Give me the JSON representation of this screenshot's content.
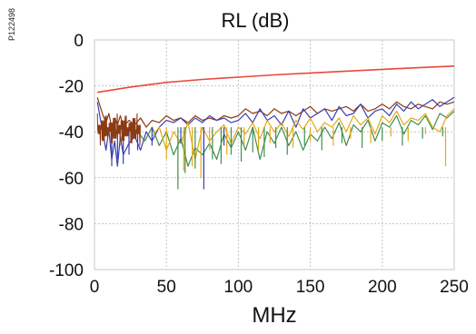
{
  "figure_id": "P122498",
  "chart_data": {
    "type": "line",
    "title": "RL (dB)",
    "xlabel": "MHz",
    "ylabel": "",
    "xlim": [
      0,
      250
    ],
    "ylim": [
      -100,
      0
    ],
    "x_ticks": [
      "0",
      "50",
      "100",
      "150",
      "200",
      "250"
    ],
    "y_ticks": [
      "0",
      "-20",
      "-40",
      "-60",
      "-80",
      "-100"
    ],
    "grid": true,
    "legend": "none",
    "series": [
      {
        "color": "#e8483c",
        "x": [
          2,
          25,
          50,
          75,
          100,
          125,
          150,
          175,
          200,
          225,
          250
        ],
        "y": [
          -22.8,
          -20.5,
          -18.5,
          -17.2,
          -16.2,
          -15.2,
          -14.4,
          -13.6,
          -12.8,
          -12.1,
          -11.4
        ]
      },
      {
        "color": "#8b3a12",
        "x": [
          2,
          4,
          6,
          8,
          10,
          12,
          14,
          16,
          18,
          20,
          24,
          28,
          32,
          36,
          40,
          45,
          50,
          55,
          60,
          65,
          70,
          75,
          80,
          85,
          90,
          95,
          100,
          105,
          110,
          115,
          120,
          125,
          130,
          135,
          140,
          145,
          150,
          155,
          160,
          165,
          170,
          175,
          180,
          185,
          190,
          195,
          200,
          205,
          210,
          215,
          220,
          225,
          230,
          235,
          240,
          245,
          250
        ],
        "y": [
          -25,
          -29,
          -33,
          -36,
          -32,
          -38,
          -34,
          -37,
          -33,
          -38,
          -35,
          -37,
          -34,
          -38,
          -35,
          -36,
          -33,
          -35,
          -34,
          -36,
          -33,
          -35,
          -34,
          -35,
          -33,
          -34,
          -33,
          -30,
          -32,
          -31,
          -33,
          -30,
          -32,
          -31,
          -33,
          -31,
          -29,
          -32,
          -30,
          -31,
          -30,
          -29,
          -31,
          -28,
          -31,
          -30,
          -28,
          -30,
          -27,
          -29,
          -30,
          -28,
          -29,
          -30,
          -27,
          -28,
          -27
        ]
      },
      {
        "color": "#3a3fae",
        "x": [
          2,
          4,
          6,
          8,
          10,
          12,
          14,
          16,
          18,
          20,
          24,
          28,
          32,
          36,
          40,
          45,
          50,
          55,
          60,
          65,
          70,
          75,
          80,
          85,
          90,
          95,
          100,
          105,
          110,
          115,
          120,
          125,
          130,
          135,
          140,
          145,
          150,
          155,
          160,
          165,
          170,
          175,
          180,
          185,
          190,
          195,
          200,
          205,
          210,
          215,
          220,
          225,
          230,
          235,
          240,
          245,
          250
        ],
        "y": [
          -27,
          -34,
          -41,
          -48,
          -39,
          -52,
          -44,
          -55,
          -42,
          -50,
          -45,
          -42,
          -48,
          -40,
          -44,
          -38,
          -35,
          -36,
          -34,
          -37,
          -34,
          -36,
          -33,
          -35,
          -34,
          -36,
          -35,
          -32,
          -36,
          -30,
          -35,
          -33,
          -37,
          -31,
          -38,
          -30,
          -34,
          -32,
          -30,
          -35,
          -29,
          -33,
          -32,
          -28,
          -34,
          -31,
          -30,
          -33,
          -28,
          -31,
          -27,
          -30,
          -28,
          -26,
          -29,
          -27,
          -25
        ]
      },
      {
        "color": "#3f8f4f",
        "x": [
          30,
          35,
          40,
          45,
          50,
          55,
          60,
          65,
          70,
          75,
          80,
          85,
          90,
          95,
          100,
          105,
          110,
          115,
          120,
          125,
          130,
          135,
          140,
          145,
          150,
          155,
          160,
          165,
          170,
          175,
          180,
          185,
          190,
          195,
          200,
          205,
          210,
          215,
          220,
          225,
          230,
          235,
          240,
          245,
          250
        ],
        "y": [
          -40,
          -44,
          -38,
          -46,
          -40,
          -50,
          -43,
          -55,
          -47,
          -50,
          -45,
          -52,
          -41,
          -47,
          -40,
          -48,
          -38,
          -52,
          -40,
          -45,
          -38,
          -46,
          -40,
          -48,
          -41,
          -44,
          -38,
          -43,
          -36,
          -46,
          -37,
          -40,
          -35,
          -44,
          -36,
          -38,
          -33,
          -41,
          -35,
          -37,
          -33,
          -39,
          -32,
          -34,
          -31
        ]
      },
      {
        "color": "#e6a817",
        "x": [
          40,
          45,
          50,
          55,
          60,
          65,
          70,
          75,
          80,
          85,
          90,
          95,
          100,
          105,
          110,
          115,
          120,
          125,
          130,
          135,
          140,
          145,
          150,
          155,
          160,
          165,
          170,
          175,
          180,
          185,
          190,
          195,
          200,
          205,
          210,
          215,
          220,
          225,
          230,
          235,
          240,
          245,
          250
        ],
        "y": [
          -42,
          -38,
          -48,
          -40,
          -45,
          -36,
          -52,
          -38,
          -44,
          -40,
          -37,
          -45,
          -38,
          -41,
          -36,
          -43,
          -35,
          -40,
          -36,
          -42,
          -35,
          -39,
          -34,
          -40,
          -36,
          -38,
          -34,
          -40,
          -33,
          -37,
          -34,
          -41,
          -33,
          -36,
          -31,
          -37,
          -34,
          -35,
          -32,
          -38,
          -40,
          -33,
          -30
        ]
      }
    ],
    "spikes": [
      {
        "color": "#3f8f4f",
        "x": [
          58,
          63,
          70,
          76,
          82,
          88,
          95,
          102,
          110,
          118,
          126,
          134,
          146,
          158,
          172,
          186,
          200,
          214,
          228,
          242
        ],
        "y": [
          -65,
          -58,
          -56,
          -60,
          -52,
          -54,
          -50,
          -53,
          -49,
          -51,
          -47,
          -50,
          -46,
          -48,
          -45,
          -47,
          -44,
          -46,
          -43,
          -42
        ]
      },
      {
        "color": "#e6a817",
        "x": [
          50,
          62,
          68,
          74,
          80,
          92,
          104,
          114,
          122,
          138,
          150,
          166,
          178,
          192,
          206,
          218,
          230,
          244
        ],
        "y": [
          -52,
          -57,
          -55,
          -60,
          -48,
          -50,
          -46,
          -48,
          -45,
          -47,
          -44,
          -46,
          -43,
          -45,
          -42,
          -44,
          -41,
          -55
        ]
      },
      {
        "color": "#3a3fae",
        "x": [
          12,
          16,
          20,
          24,
          30,
          40,
          60,
          76,
          90
        ],
        "y": [
          -55,
          -52,
          -54,
          -50,
          -48,
          -46,
          -45,
          -65,
          -46
        ]
      }
    ]
  }
}
